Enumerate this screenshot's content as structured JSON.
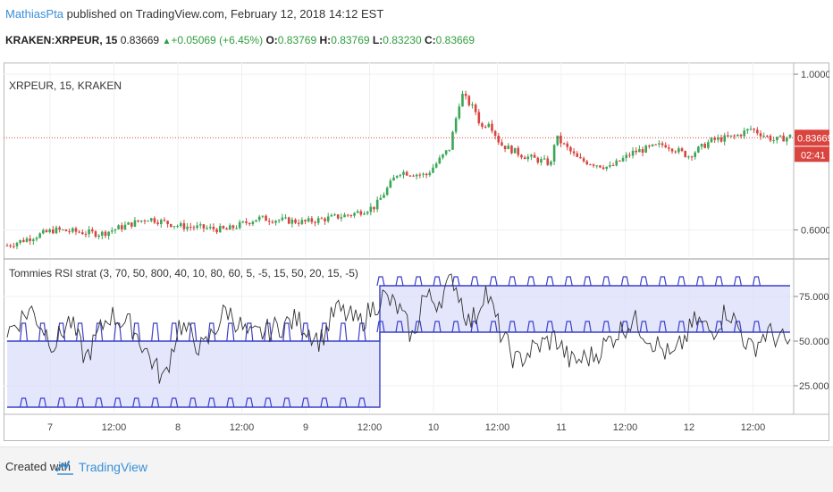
{
  "header": {
    "author": "MathiasPta",
    "published": "published on TradingView.com, February 12, 2018 14:12 EST",
    "symbol": "KRAKEN:XRPEUR, 15",
    "last": "0.83669",
    "change": "+0.05069 (+6.45%)",
    "o_label": "O:",
    "o": "0.83769",
    "h_label": "H:",
    "h": "0.83769",
    "l_label": "L:",
    "l": "0.83230",
    "c_label": "C:",
    "c": "0.83669"
  },
  "footer": {
    "created_with": "Created with",
    "brand": "TradingView"
  },
  "colors": {
    "up": "#3aa757",
    "down": "#d9443f",
    "band_line": "#3b3fc9",
    "band_fill": "#d8dbfb",
    "rsi_line": "#333333",
    "price_line": "#d9443f",
    "author": "#3a8fd8"
  },
  "icons": {
    "rise": "triangle-up-icon",
    "logo": "tradingview-logo-icon"
  },
  "chart_data": [
    {
      "type": "candlestick",
      "title": "XRPEUR, 15, KRAKEN",
      "y_ticks": [
        "1.00000",
        "0.60000"
      ],
      "ylim": [
        0.53,
        1.03
      ],
      "last_price_label": "0.83669",
      "countdown_label": "02:41",
      "x_ticks": [
        "7",
        "12:00",
        "8",
        "12:00",
        "9",
        "12:00",
        "10",
        "12:00",
        "11",
        "12:00",
        "12",
        "12:00"
      ],
      "x": [
        0,
        0.06,
        0.12,
        0.18,
        0.22,
        0.28,
        0.32,
        0.38,
        0.44,
        0.47,
        0.5,
        0.535,
        0.565,
        0.58,
        0.6,
        0.605,
        0.615,
        0.63,
        0.66,
        0.695,
        0.7,
        0.73,
        0.77,
        0.8,
        0.84,
        0.87,
        0.9,
        0.93,
        0.95,
        0.98,
        1.0
      ],
      "close": [
        0.56,
        0.6,
        0.59,
        0.63,
        0.61,
        0.6,
        0.63,
        0.62,
        0.64,
        0.66,
        0.75,
        0.74,
        0.81,
        0.95,
        0.9,
        0.86,
        0.88,
        0.82,
        0.79,
        0.77,
        0.84,
        0.78,
        0.76,
        0.8,
        0.82,
        0.79,
        0.83,
        0.84,
        0.86,
        0.83,
        0.84
      ]
    },
    {
      "type": "line",
      "title": "Tommies RSI strat (3, 70, 50, 800, 40, 10, 80, 60, 5, -5, 15, 50, 20, 15, -5)",
      "y_ticks": [
        "75.0000",
        "50.0000",
        "25.0000"
      ],
      "ylim": [
        10,
        95
      ],
      "x_ticks": [
        "7",
        "12:00",
        "8",
        "12:00",
        "9",
        "12:00",
        "10",
        "12:00",
        "11",
        "12:00",
        "12",
        "12:00"
      ],
      "upper_band": {
        "x": [
          0,
          0.476,
          0.476,
          1.0
        ],
        "values": [
          50,
          50,
          81,
          81
        ]
      },
      "lower_band": {
        "x": [
          0,
          0.476,
          0.476,
          1.0
        ],
        "values": [
          13,
          13,
          55,
          55
        ]
      },
      "rsi_line": {
        "x": [
          0,
          0.03,
          0.06,
          0.08,
          0.1,
          0.13,
          0.16,
          0.19,
          0.2,
          0.22,
          0.25,
          0.28,
          0.31,
          0.34,
          0.37,
          0.4,
          0.42,
          0.45,
          0.48,
          0.5,
          0.52,
          0.53,
          0.55,
          0.57,
          0.59,
          0.6,
          0.61,
          0.63,
          0.65,
          0.67,
          0.7,
          0.72,
          0.75,
          0.78,
          0.8,
          0.82,
          0.85,
          0.88,
          0.9,
          0.92,
          0.95,
          0.97,
          1.0
        ],
        "values": [
          55,
          68,
          48,
          62,
          40,
          65,
          58,
          35,
          28,
          60,
          45,
          68,
          52,
          57,
          62,
          50,
          68,
          60,
          75,
          68,
          50,
          75,
          72,
          85,
          60,
          65,
          80,
          55,
          38,
          45,
          52,
          38,
          42,
          55,
          62,
          52,
          40,
          62,
          55,
          68,
          45,
          55,
          48
        ]
      }
    }
  ]
}
